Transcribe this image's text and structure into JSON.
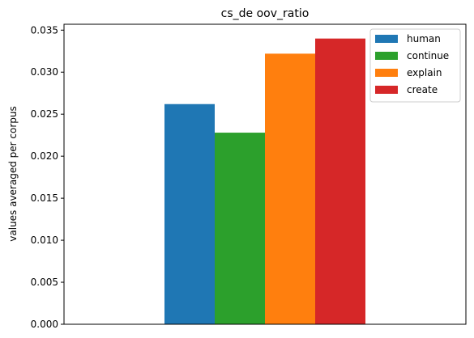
{
  "chart_data": {
    "type": "bar",
    "title": "cs_de oov_ratio",
    "xlabel": "",
    "ylabel": "values averaged per corpus",
    "ylim": [
      0,
      0.0357
    ],
    "yticks": [
      "0.000",
      "0.005",
      "0.010",
      "0.015",
      "0.020",
      "0.025",
      "0.030",
      "0.035"
    ],
    "grid": false,
    "legend_position": "top-right",
    "series": [
      {
        "name": "human",
        "value": 0.0262,
        "color": "#1f77b4"
      },
      {
        "name": "continue",
        "value": 0.0228,
        "color": "#2ca02c"
      },
      {
        "name": "explain",
        "value": 0.0322,
        "color": "#ff7f0e"
      },
      {
        "name": "create",
        "value": 0.034,
        "color": "#d62728"
      }
    ]
  }
}
